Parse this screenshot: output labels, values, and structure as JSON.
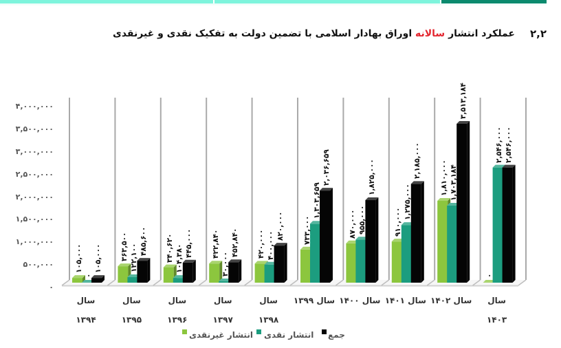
{
  "header": {
    "section_number": "۲,۲",
    "title_part1": "عملکرد انتشار",
    "title_highlight": "سالانه",
    "title_part2": "اوراق بهادار اسلامی با تضمین دولت به تفکیک نقدی و غیرنقدی",
    "highlight_color": "#e3262f"
  },
  "decor": {
    "top_bar_colors": [
      "#7ef4dc",
      "#7ef4dc",
      "#0b8a6e"
    ]
  },
  "chart_data": {
    "type": "bar",
    "style": "3d-clustered-column",
    "title": "عملکرد انتشار سالانه اوراق بهادار اسلامی با تضمین دولت به تفکیک نقدی و غیرنقدی",
    "xlabel": "",
    "ylabel": "",
    "categories": [
      "سال ۱۳۹۴",
      "سال ۱۳۹۵",
      "سال ۱۳۹۶",
      "سال ۱۳۹۷",
      "سال ۱۳۹۸",
      "سال ۱۳۹۹",
      "سال ۱۴۰۰",
      "سال ۱۴۰۱",
      "سال ۱۴۰۲",
      "سال ۱۴۰۳"
    ],
    "xtick_wrap": [
      true,
      true,
      true,
      true,
      true,
      false,
      false,
      false,
      false,
      true
    ],
    "series": [
      {
        "name": "انتشار غیرنقدی",
        "color": "#8cc63e",
        "values": [
          105000,
          363500,
          340620,
          422840,
          420000,
          733000,
          870000,
          910000,
          1810000,
          0
        ],
        "labels": [
          "۱۰۵,۰۰۰",
          "۳۶۳,۵۰۰",
          "۳۴۰,۶۲۰",
          "۴۲۲,۸۴۰",
          "۴۲۰,۰۰۰",
          "۷۳۳,۰۰۰",
          "۸۷۰,۰۰۰",
          "۹۱۰,۰۰۰",
          "۱,۸۱۰,۰۰۰",
          "۰"
        ]
      },
      {
        "name": "انتشار نقدی",
        "color": "#1c9d7f",
        "values": [
          0,
          122100,
          104380,
          30000,
          400000,
          1303659,
          955000,
          1275000,
          1703184,
          2546000
        ],
        "labels": [
          "۰",
          "۱۲۲,۱۰۰",
          "۱۰۴,۳۸۰",
          "۳۰,۰۰۰",
          "۴۰۰,۰۰۰",
          "۱,۳۰۳,۶۵۹",
          "۹۵۵,۰۰۰",
          "۱,۲۷۵,۰۰۰",
          "۱,۷۰۳,۱۸۴",
          "۲,۵۴۶,۰۰۰"
        ]
      },
      {
        "name": "جمع",
        "color": "#050505",
        "values": [
          105000,
          485600,
          445000,
          452840,
          820000,
          2036659,
          1825000,
          2185000,
          3513184,
          2546000
        ],
        "labels": [
          "۱۰۵,۰۰۰",
          "۴۸۵,۶۰۰",
          "۴۴۵,۰۰۰",
          "۴۵۲,۸۴۰",
          "۸۲۰,۰۰۰",
          "۲,۰۳۶,۶۵۹",
          "۱,۸۲۵,۰۰۰",
          "۲,۱۸۵,۰۰۰",
          "۳,۵۱۳,۱۸۴",
          "۲,۵۴۶,۰۰۰"
        ]
      }
    ],
    "ylim": [
      0,
      4000000
    ],
    "yticks": [
      0,
      500000,
      1000000,
      1500000,
      2000000,
      2500000,
      3000000,
      3500000,
      4000000
    ],
    "ytick_labels": [
      "۰",
      "۵۰۰,۰۰۰",
      "۱,۰۰۰,۰۰۰",
      "۱,۵۰۰,۰۰۰",
      "۲,۰۰۰,۰۰۰",
      "۲,۵۰۰,۰۰۰",
      "۳,۰۰۰,۰۰۰",
      "۳,۵۰۰,۰۰۰",
      "۴,۰۰۰,۰۰۰"
    ],
    "grid": false,
    "data_labels": true,
    "legend_position": "bottom",
    "legend": [
      "انتشار غیرنقدی",
      "انتشار نقدی",
      "جمع"
    ]
  }
}
